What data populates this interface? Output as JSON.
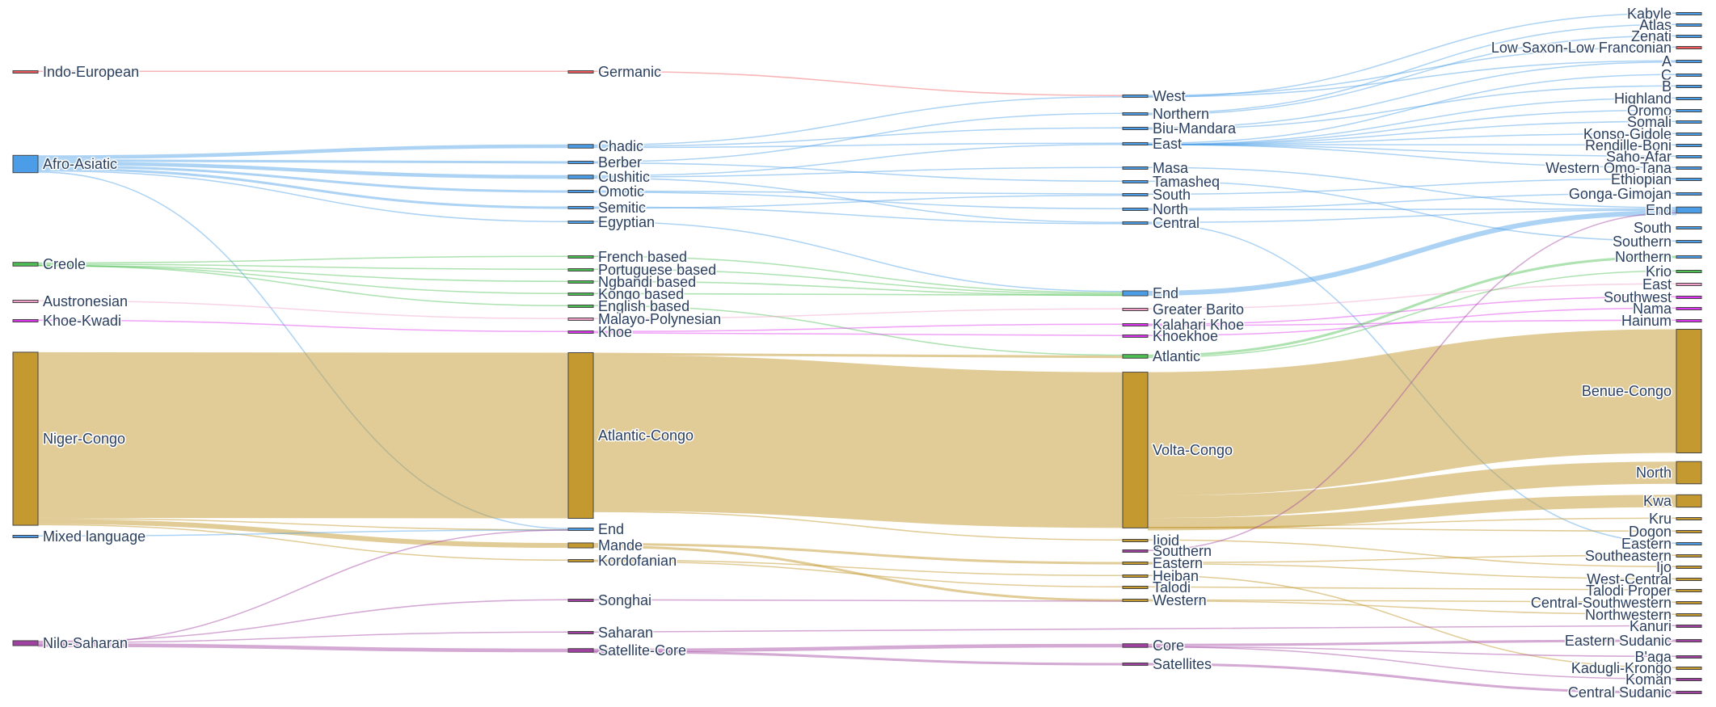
{
  "colors": {
    "Indo-European": "#f05a5f",
    "Afro-Asiatic": "#4a9de6",
    "Creole": "#4bbf52",
    "Austronesian": "#f0a0c8",
    "Khoe-Kwadi": "#dd33ee",
    "Niger-Congo": "#c49a30",
    "Mixed language": "#4a9de6",
    "Nilo-Saharan": "#a040a0"
  },
  "chart_data": {
    "type": "sankey",
    "title": "",
    "columns": [
      [
        "Indo-European",
        "Afro-Asiatic",
        "Creole",
        "Austronesian",
        "Khoe-Kwadi",
        "Niger-Congo",
        "Mixed language",
        "Nilo-Saharan"
      ],
      [
        "Germanic",
        "Chadic",
        "Berber",
        "Cushitic",
        "Omotic",
        "Semitic",
        "Egyptian",
        "French based",
        "Portuguese based",
        "Ngbandi based",
        "Kongo based",
        "English based",
        "Malayo-Polynesian",
        "Khoe",
        "Atlantic-Congo",
        "End",
        "Mande",
        "Kordofanian",
        "Songhai",
        "Saharan",
        "Satellite-Core"
      ],
      [
        "West",
        "Northern",
        "Biu-Mandara",
        "East",
        "Masa",
        "Tamasheq",
        "South",
        "North",
        "Central",
        "End",
        "Greater Barito",
        "Kalahari Khoe",
        "Khoekhoe",
        "Atlantic",
        "Volta-Congo",
        "Ijoid",
        "Southern",
        "Eastern",
        "Heiban",
        "Talodi",
        "Western",
        "Core",
        "Satellites"
      ],
      [
        "Kabyle",
        "Atlas",
        "Zenati",
        "Low Saxon-Low Franconian",
        "A",
        "C",
        "B",
        "Highland",
        "Oromo",
        "Somali",
        "Konso-Gidole",
        "Rendille-Boni",
        "Saho-Afar",
        "Western Omo-Tana",
        "Ethiopian",
        "Gonga-Gimojan",
        "End",
        "South",
        "Southern",
        "Northern",
        "Krio",
        "East",
        "Southwest",
        "Nama",
        "Hainum",
        "Benue-Congo",
        "North",
        "Kwa",
        "Kru",
        "Dogon",
        "Eastern",
        "Southeastern",
        "Ijo",
        "West-Central",
        "Talodi Proper",
        "Central-Southwestern",
        "Northwestern",
        "Kanuri",
        "Eastern Sudanic",
        "B'aga",
        "Kadugli-Krongo",
        "Koman",
        "Central Sudanic"
      ]
    ],
    "node_families": [
      [
        "Indo-European",
        "Afro-Asiatic",
        "Creole",
        "Austronesian",
        "Khoe-Kwadi",
        "Niger-Congo",
        "Mixed language",
        "Nilo-Saharan"
      ],
      [
        "Indo-European",
        "Afro-Asiatic",
        "Afro-Asiatic",
        "Afro-Asiatic",
        "Afro-Asiatic",
        "Afro-Asiatic",
        "Afro-Asiatic",
        "Creole",
        "Creole",
        "Creole",
        "Creole",
        "Creole",
        "Austronesian",
        "Khoe-Kwadi",
        "Niger-Congo",
        "Afro-Asiatic",
        "Niger-Congo",
        "Niger-Congo",
        "Nilo-Saharan",
        "Nilo-Saharan",
        "Nilo-Saharan"
      ],
      [
        "Afro-Asiatic",
        "Afro-Asiatic",
        "Afro-Asiatic",
        "Afro-Asiatic",
        "Afro-Asiatic",
        "Afro-Asiatic",
        "Afro-Asiatic",
        "Afro-Asiatic",
        "Afro-Asiatic",
        "Afro-Asiatic",
        "Austronesian",
        "Khoe-Kwadi",
        "Khoe-Kwadi",
        "Creole",
        "Niger-Congo",
        "Niger-Congo",
        "Nilo-Saharan",
        "Niger-Congo",
        "Niger-Congo",
        "Niger-Congo",
        "Niger-Congo",
        "Nilo-Saharan",
        "Nilo-Saharan"
      ],
      [
        "Afro-Asiatic",
        "Afro-Asiatic",
        "Afro-Asiatic",
        "Indo-European",
        "Afro-Asiatic",
        "Afro-Asiatic",
        "Afro-Asiatic",
        "Afro-Asiatic",
        "Afro-Asiatic",
        "Afro-Asiatic",
        "Afro-Asiatic",
        "Afro-Asiatic",
        "Afro-Asiatic",
        "Afro-Asiatic",
        "Afro-Asiatic",
        "Afro-Asiatic",
        "Afro-Asiatic",
        "Afro-Asiatic",
        "Afro-Asiatic",
        "Afro-Asiatic",
        "Creole",
        "Austronesian",
        "Khoe-Kwadi",
        "Khoe-Kwadi",
        "Khoe-Kwadi",
        "Niger-Congo",
        "Niger-Congo",
        "Niger-Congo",
        "Niger-Congo",
        "Niger-Congo",
        "Afro-Asiatic",
        "Niger-Congo",
        "Niger-Congo",
        "Niger-Congo",
        "Niger-Congo",
        "Niger-Congo",
        "Niger-Congo",
        "Nilo-Saharan",
        "Nilo-Saharan",
        "Nilo-Saharan",
        "Niger-Congo",
        "Nilo-Saharan",
        "Nilo-Saharan"
      ]
    ],
    "node_values": [
      [
        1,
        14,
        3,
        1,
        1,
        140,
        1,
        4
      ],
      [
        1,
        3,
        2,
        3,
        2,
        2,
        1,
        1,
        1,
        1,
        1,
        1,
        1,
        1,
        134,
        2,
        4,
        1,
        1,
        1,
        3
      ],
      [
        2,
        1,
        2,
        2,
        1,
        1,
        1,
        1,
        1,
        4,
        1,
        1,
        1,
        3,
        126,
        1,
        1,
        2,
        1,
        1,
        2,
        3,
        2
      ],
      [
        1,
        1,
        1,
        1,
        2,
        1,
        1,
        1,
        1,
        1,
        1,
        1,
        1,
        1,
        1,
        1,
        5,
        1,
        1,
        2,
        1,
        1,
        1,
        1,
        1,
        100,
        18,
        10,
        1,
        1,
        1,
        1,
        1,
        1,
        1,
        1,
        1,
        1,
        2,
        1,
        1,
        1,
        2
      ]
    ],
    "links": [
      [
        "Indo-European",
        "Germanic",
        1
      ],
      [
        "Germanic",
        "West",
        1
      ],
      [
        "West",
        "Low Saxon-Low Franconian",
        1
      ],
      [
        "Afro-Asiatic",
        "Chadic",
        3
      ],
      [
        "Afro-Asiatic",
        "Berber",
        2
      ],
      [
        "Afro-Asiatic",
        "Cushitic",
        3
      ],
      [
        "Afro-Asiatic",
        "Omotic",
        2
      ],
      [
        "Afro-Asiatic",
        "Semitic",
        2
      ],
      [
        "Afro-Asiatic",
        "Egyptian",
        1
      ],
      [
        "Afro-Asiatic",
        "End",
        1
      ],
      [
        "Chadic",
        "West",
        1
      ],
      [
        "Chadic",
        "Biu-Mandara",
        1
      ],
      [
        "Chadic",
        "East",
        1
      ],
      [
        "Berber",
        "Northern",
        1
      ],
      [
        "Berber",
        "Tamasheq",
        1
      ],
      [
        "Cushitic",
        "East",
        1
      ],
      [
        "Cushitic",
        "Masa",
        1
      ],
      [
        "Cushitic",
        "Central",
        1
      ],
      [
        "Omotic",
        "South",
        1
      ],
      [
        "Omotic",
        "North",
        1
      ],
      [
        "Semitic",
        "Central",
        1
      ],
      [
        "Semitic",
        "South",
        1
      ],
      [
        "Egyptian",
        "End",
        1
      ],
      [
        "West",
        "A",
        1
      ],
      [
        "West",
        "Kabyle",
        1
      ],
      [
        "Northern",
        "Atlas",
        1
      ],
      [
        "Northern",
        "Zenati",
        1
      ],
      [
        "Biu-Mandara",
        "A",
        1
      ],
      [
        "Biu-Mandara",
        "B",
        1
      ],
      [
        "East",
        "C",
        1
      ],
      [
        "East",
        "Highland",
        1
      ],
      [
        "East",
        "Oromo",
        1
      ],
      [
        "East",
        "Somali",
        1
      ],
      [
        "East",
        "Konso-Gidole",
        1
      ],
      [
        "East",
        "Rendille-Boni",
        1
      ],
      [
        "East",
        "Saho-Afar",
        1
      ],
      [
        "East",
        "Western Omo-Tana",
        1
      ],
      [
        "Masa",
        "End",
        1
      ],
      [
        "Tamasheq",
        "Southern",
        1
      ],
      [
        "South",
        "Ethiopian",
        1
      ],
      [
        "North",
        "Gonga-Gimojan",
        1
      ],
      [
        "North",
        "End",
        1
      ],
      [
        "Central",
        "End",
        1
      ],
      [
        "Central",
        "Eastern",
        1
      ],
      [
        "Creole",
        "French based",
        1
      ],
      [
        "Creole",
        "Portuguese based",
        1
      ],
      [
        "Creole",
        "Ngbandi based",
        1
      ],
      [
        "Creole",
        "Kongo based",
        1
      ],
      [
        "Creole",
        "English based",
        1
      ],
      [
        "French based",
        "End",
        1
      ],
      [
        "Portuguese based",
        "End",
        1
      ],
      [
        "Ngbandi based",
        "End",
        1
      ],
      [
        "Kongo based",
        "End",
        1
      ],
      [
        "English based",
        "Atlantic",
        1
      ],
      [
        "End",
        "End",
        4
      ],
      [
        "Austronesian",
        "Malayo-Polynesian",
        1
      ],
      [
        "Malayo-Polynesian",
        "Greater Barito",
        1
      ],
      [
        "Greater Barito",
        "East",
        1
      ],
      [
        "Khoe-Kwadi",
        "Khoe",
        1
      ],
      [
        "Khoe",
        "Kalahari Khoe",
        1
      ],
      [
        "Khoe",
        "Khoekhoe",
        1
      ],
      [
        "Kalahari Khoe",
        "Southwest",
        1
      ],
      [
        "Khoekhoe",
        "Nama",
        1
      ],
      [
        "Kalahari Khoe",
        "Hainum",
        1
      ],
      [
        "Atlantic",
        "Northern",
        2
      ],
      [
        "Atlantic",
        "Krio",
        1
      ],
      [
        "Niger-Congo",
        "Atlantic-Congo",
        134
      ],
      [
        "Niger-Congo",
        "End",
        1
      ],
      [
        "Niger-Congo",
        "Mande",
        4
      ],
      [
        "Niger-Congo",
        "Kordofanian",
        1
      ],
      [
        "Atlantic-Congo",
        "Atlantic",
        2
      ],
      [
        "Atlantic-Congo",
        "Volta-Congo",
        126
      ],
      [
        "Atlantic-Congo",
        "Ijoid",
        1
      ],
      [
        "Volta-Congo",
        "Benue-Congo",
        100
      ],
      [
        "Volta-Congo",
        "North",
        18
      ],
      [
        "Volta-Congo",
        "Kwa",
        10
      ],
      [
        "Volta-Congo",
        "Kru",
        1
      ],
      [
        "Volta-Congo",
        "Dogon",
        1
      ],
      [
        "Ijoid",
        "Ijo",
        1
      ],
      [
        "Mande",
        "Eastern",
        2
      ],
      [
        "Mande",
        "Western",
        2
      ],
      [
        "Kordofanian",
        "Heiban",
        1
      ],
      [
        "Kordofanian",
        "Talodi",
        1
      ],
      [
        "Eastern",
        "Southeastern",
        1
      ],
      [
        "Eastern",
        "West-Central",
        1
      ],
      [
        "Western",
        "Central-Southwestern",
        1
      ],
      [
        "Western",
        "Northwestern",
        1
      ],
      [
        "Heiban",
        "Kadugli-Krongo",
        1
      ],
      [
        "Talodi",
        "Talodi Proper",
        1
      ],
      [
        "Mixed language",
        "End",
        1
      ],
      [
        "Nilo-Saharan",
        "Songhai",
        1
      ],
      [
        "Nilo-Saharan",
        "Saharan",
        1
      ],
      [
        "Nilo-Saharan",
        "Satellite-Core",
        3
      ],
      [
        "Nilo-Saharan",
        "End",
        1
      ],
      [
        "Songhai",
        "Western",
        1
      ],
      [
        "Saharan",
        "Kanuri",
        1
      ],
      [
        "Satellite-Core",
        "Core",
        3
      ],
      [
        "Satellite-Core",
        "Satellites",
        2
      ],
      [
        "Core",
        "Eastern Sudanic",
        2
      ],
      [
        "Core",
        "B'aga",
        1
      ],
      [
        "Core",
        "Koman",
        1
      ],
      [
        "Satellites",
        "Central Sudanic",
        2
      ],
      [
        "Southern",
        "End",
        1
      ]
    ]
  }
}
